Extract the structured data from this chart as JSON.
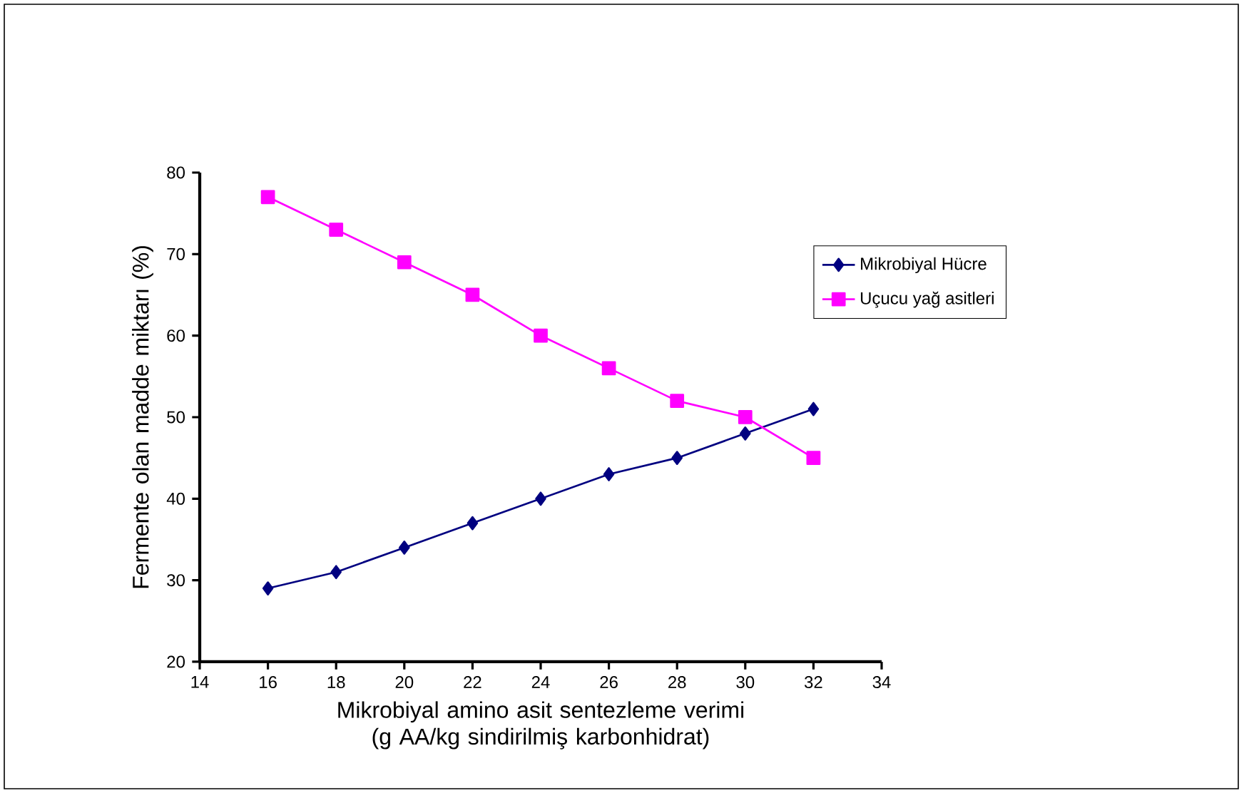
{
  "chart_data": {
    "type": "line",
    "xlabel": "Mikrobiyal amino asit sentezleme verimi (g AA/kg sindirilmiş karbonhidrat)",
    "ylabel": "Fermente olan madde miktarı (%)",
    "x": [
      16,
      18,
      20,
      22,
      24,
      26,
      28,
      30,
      32
    ],
    "series": [
      {
        "name": "Mikrobiyal Hücre",
        "color": "#000080",
        "marker": "diamond",
        "values": [
          29,
          31,
          34,
          37,
          40,
          43,
          45,
          48,
          51
        ]
      },
      {
        "name": "Uçucu yağ asitleri",
        "color": "#ff00ff",
        "marker": "square",
        "values": [
          77,
          73,
          69,
          65,
          60,
          56,
          52,
          50,
          45
        ]
      }
    ],
    "xlim": [
      14,
      34
    ],
    "xticks": [
      14,
      16,
      18,
      20,
      22,
      24,
      26,
      28,
      30,
      32,
      34
    ],
    "ylim": [
      20,
      80
    ],
    "yticks": [
      20,
      30,
      40,
      50,
      60,
      70,
      80
    ],
    "grid": false,
    "legend": "right",
    "line_style": "solid"
  }
}
